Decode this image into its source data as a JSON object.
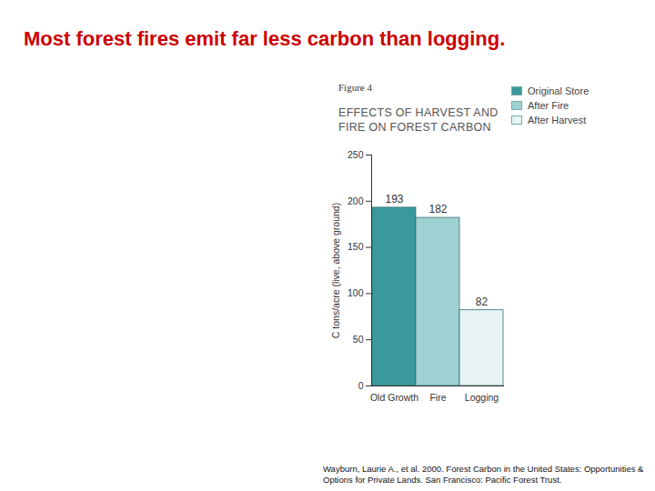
{
  "heading": "Most forest fires emit far less carbon than logging.",
  "source": "Wayburn, Laurie A., et al. 2000. Forest Carbon in the United States: Opportunities & Options for Private Lands. San Francisco: Pacific Forest Trust.",
  "chart_data": {
    "type": "bar",
    "subtitle": "Figure 4",
    "title": "EFFECTS OF HARVEST AND FIRE ON FOREST CARBON",
    "y_label": "C tons/acre (live, above ground)",
    "categories": [
      "Old Growth",
      "Fire",
      "Logging"
    ],
    "series": [
      {
        "name": "Original Store",
        "color": "#3a9a9b",
        "values": [
          193,
          null,
          null
        ]
      },
      {
        "name": "After Fire",
        "color": "#9fd0d2",
        "values": [
          null,
          182,
          null
        ]
      },
      {
        "name": "After Harvest",
        "color": "#e6f2f3",
        "values": [
          null,
          null,
          82
        ]
      }
    ],
    "ylim": [
      0,
      250
    ],
    "yticks": [
      0,
      50,
      100,
      150,
      200,
      250
    ],
    "data_labels": true,
    "legend": "top-right",
    "grid": false
  }
}
